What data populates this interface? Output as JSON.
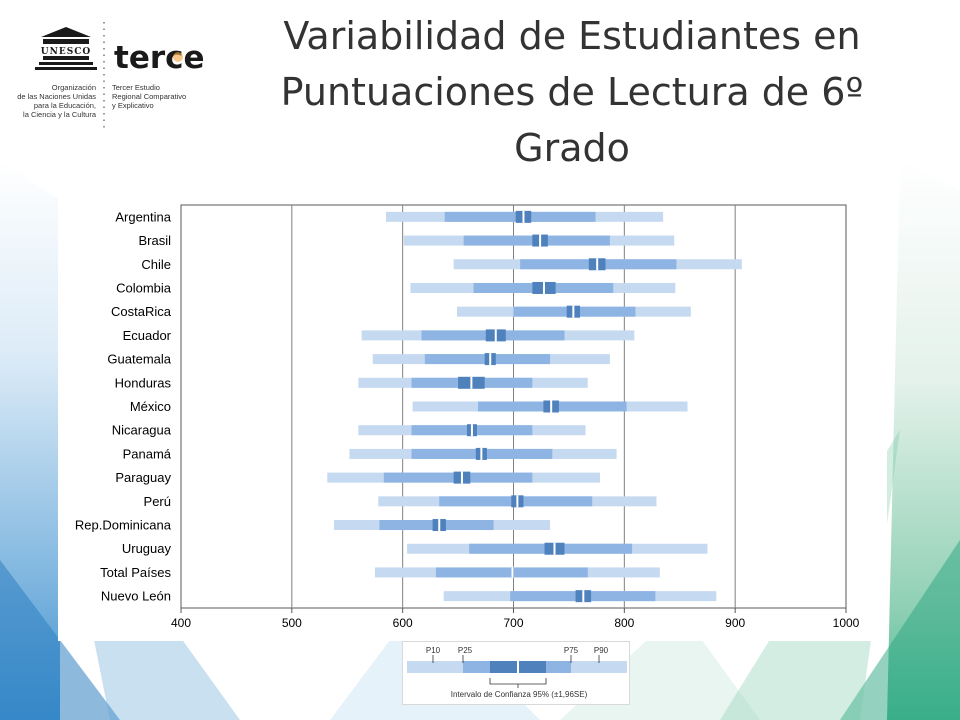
{
  "slide": {
    "title": "Variabilidad de Estudiantes en Puntuaciones de Lectura de 6º Grado"
  },
  "logo": {
    "unesco_wordmark": "UNESCO",
    "unesco_lines": [
      "Organización",
      "de las Naciones Unidas",
      "para la Educación,",
      "la Ciencia y la Cultura"
    ],
    "terce_wordmark": "terce",
    "terce_lines": [
      "Tercer Estudio",
      "Regional Comparativo",
      "y Explicativo"
    ]
  },
  "colors": {
    "band_outer": "#c5d9f1",
    "band_inner": "#8db4e2",
    "mean_ci": "#4f81bd",
    "grid": "#808080"
  },
  "chart_data": {
    "type": "bar",
    "variant": "percentile-bands",
    "categories": [
      "Argentina",
      "Brasil",
      "Chile",
      "Colombia",
      "CostaRica",
      "Ecuador",
      "Guatemala",
      "Honduras",
      "México",
      "Nicaragua",
      "Panamá",
      "Paraguay",
      "Perú",
      "Rep.Dominicana",
      "Uruguay",
      "Total Países",
      "Nuevo León"
    ],
    "xlim": [
      400,
      1000
    ],
    "xticks": [
      400,
      500,
      600,
      700,
      800,
      900,
      1000
    ],
    "grid": "vertical",
    "series": [
      {
        "name": "P10",
        "values": [
          585,
          601,
          646,
          607,
          649,
          563,
          573,
          560,
          609,
          560,
          552,
          532,
          578,
          538,
          604,
          575,
          637
        ]
      },
      {
        "name": "P25",
        "values": [
          638,
          655,
          706,
          664,
          700,
          617,
          620,
          608,
          668,
          608,
          608,
          583,
          633,
          579,
          660,
          630,
          697
        ]
      },
      {
        "name": "P75",
        "values": [
          774,
          787,
          847,
          790,
          810,
          746,
          733,
          717,
          802,
          717,
          735,
          717,
          771,
          682,
          807,
          767,
          828
        ]
      },
      {
        "name": "P90",
        "values": [
          835,
          845,
          906,
          846,
          860,
          809,
          787,
          767,
          857,
          765,
          793,
          778,
          829,
          733,
          875,
          832,
          883
        ]
      },
      {
        "name": "ci_low",
        "values": [
          702,
          717,
          768,
          717,
          748,
          675,
          674,
          650,
          727,
          658,
          666,
          646,
          698,
          627,
          728,
          698,
          756
        ]
      },
      {
        "name": "ci_high",
        "values": [
          716,
          731,
          783,
          738,
          760,
          693,
          684,
          674,
          741,
          667,
          676,
          661,
          709,
          639,
          746,
          700,
          770
        ]
      }
    ]
  },
  "legend": {
    "labels": [
      "P10",
      "P25",
      "P75",
      "P90"
    ],
    "caption": "Intervalo de Confianza 95% (±1,96SE)"
  }
}
